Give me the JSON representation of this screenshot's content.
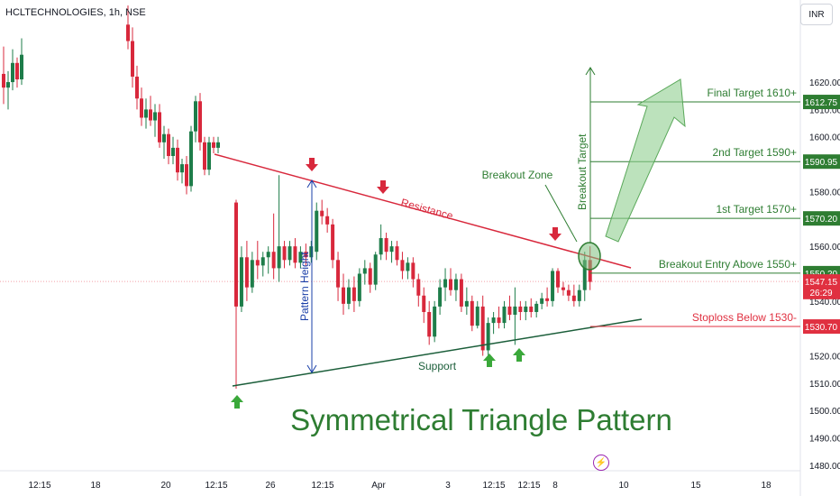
{
  "symbol": "HCLTECHNOLOGIES, 1h, NSE",
  "currency": "INR",
  "colors": {
    "bull": "#1e7d4a",
    "bear": "#d8283c",
    "annot_green": "#2e8b2e",
    "annot_red": "#d8283c",
    "annot_blue": "#1a3fa8",
    "support": "#1b5e3a",
    "label_green": "#2e7d32",
    "label_red": "#e03040",
    "label_dark": "#131722"
  },
  "chart_data": {
    "type": "candlestick",
    "title": "Symmetrical Triangle Pattern",
    "ylim": [
      1478,
      1650
    ],
    "y_ticks": [
      1480,
      1490,
      1500,
      1510,
      1520,
      1530,
      1540,
      1550,
      1560,
      1570,
      1580,
      1590,
      1600,
      1610,
      1620
    ],
    "x_ticks": [
      "12:15",
      "18",
      "20",
      "12:15",
      "26",
      "12:15",
      "Apr",
      "3",
      "12:15",
      "12:15",
      "8",
      "10",
      "15",
      "18"
    ],
    "price_labels": [
      {
        "text": "1612.75",
        "value": 1612.75,
        "style": "green"
      },
      {
        "text": "1590.95",
        "value": 1590.95,
        "style": "green"
      },
      {
        "text": "1570.20",
        "value": 1570.2,
        "style": "green"
      },
      {
        "text": "1550.20",
        "value": 1550.2,
        "style": "green"
      },
      {
        "text": "1547.15",
        "value": 1547.15,
        "style": "red"
      },
      {
        "text": "26:29",
        "value": 1543.3,
        "style": "red"
      },
      {
        "text": "1530.70",
        "value": 1530.7,
        "style": "red"
      }
    ],
    "levels": [
      {
        "label": "Final Target 1610+",
        "value": 1612.75,
        "color": "green"
      },
      {
        "label": "2nd Target 1590+",
        "value": 1590.95,
        "color": "green"
      },
      {
        "label": "1st Target 1570+",
        "value": 1570.2,
        "color": "green"
      },
      {
        "label": "Breakout Entry Above 1550+",
        "value": 1550.2,
        "color": "green"
      },
      {
        "label": "Stoploss Below 1530-",
        "value": 1530.7,
        "color": "red"
      }
    ],
    "annotations": {
      "resistance": "Resistance",
      "support": "Support",
      "breakout_zone": "Breakout Zone",
      "breakout_target": "Breakout Target",
      "pattern_height": "Pattern Height"
    },
    "candles": [
      {
        "o": 1623,
        "h": 1633,
        "l": 1612,
        "c": 1618
      },
      {
        "o": 1618,
        "h": 1624,
        "l": 1610,
        "c": 1620
      },
      {
        "o": 1620,
        "h": 1632,
        "l": 1617,
        "c": 1627
      },
      {
        "o": 1627,
        "h": 1629,
        "l": 1618,
        "c": 1621
      },
      {
        "o": 1621,
        "h": 1636,
        "l": 1619,
        "c": 1630
      },
      {
        "o": 1641,
        "h": 1648,
        "l": 1632,
        "c": 1635
      },
      {
        "o": 1635,
        "h": 1640,
        "l": 1618,
        "c": 1622
      },
      {
        "o": 1622,
        "h": 1626,
        "l": 1610,
        "c": 1614
      },
      {
        "o": 1614,
        "h": 1618,
        "l": 1604,
        "c": 1607
      },
      {
        "o": 1607,
        "h": 1614,
        "l": 1603,
        "c": 1610
      },
      {
        "o": 1610,
        "h": 1615,
        "l": 1604,
        "c": 1606
      },
      {
        "o": 1606,
        "h": 1612,
        "l": 1600,
        "c": 1609
      },
      {
        "o": 1609,
        "h": 1612,
        "l": 1596,
        "c": 1598
      },
      {
        "o": 1598,
        "h": 1604,
        "l": 1592,
        "c": 1601
      },
      {
        "o": 1601,
        "h": 1603,
        "l": 1590,
        "c": 1593
      },
      {
        "o": 1593,
        "h": 1600,
        "l": 1590,
        "c": 1596
      },
      {
        "o": 1596,
        "h": 1599,
        "l": 1584,
        "c": 1587
      },
      {
        "o": 1587,
        "h": 1592,
        "l": 1583,
        "c": 1590
      },
      {
        "o": 1590,
        "h": 1593,
        "l": 1579,
        "c": 1582
      },
      {
        "o": 1582,
        "h": 1604,
        "l": 1580,
        "c": 1602
      },
      {
        "o": 1602,
        "h": 1615,
        "l": 1598,
        "c": 1613
      },
      {
        "o": 1613,
        "h": 1616,
        "l": 1595,
        "c": 1598
      },
      {
        "o": 1598,
        "h": 1600,
        "l": 1586,
        "c": 1588
      },
      {
        "o": 1588,
        "h": 1600,
        "l": 1586,
        "c": 1598
      },
      {
        "o": 1598,
        "h": 1600,
        "l": 1594,
        "c": 1596
      },
      {
        "o": 1596,
        "h": 1600,
        "l": 1594,
        "c": 1598
      },
      {
        "o": 1576,
        "h": 1577,
        "l": 1508,
        "c": 1538
      },
      {
        "o": 1538,
        "h": 1560,
        "l": 1536,
        "c": 1556
      },
      {
        "o": 1556,
        "h": 1562,
        "l": 1540,
        "c": 1545
      },
      {
        "o": 1545,
        "h": 1558,
        "l": 1543,
        "c": 1555
      },
      {
        "o": 1555,
        "h": 1562,
        "l": 1548,
        "c": 1553
      },
      {
        "o": 1553,
        "h": 1558,
        "l": 1549,
        "c": 1556
      },
      {
        "o": 1556,
        "h": 1560,
        "l": 1550,
        "c": 1558
      },
      {
        "o": 1558,
        "h": 1572,
        "l": 1548,
        "c": 1552
      },
      {
        "o": 1552,
        "h": 1586,
        "l": 1547,
        "c": 1560
      },
      {
        "o": 1560,
        "h": 1562,
        "l": 1552,
        "c": 1555
      },
      {
        "o": 1555,
        "h": 1562,
        "l": 1553,
        "c": 1560
      },
      {
        "o": 1560,
        "h": 1563,
        "l": 1552,
        "c": 1554
      },
      {
        "o": 1554,
        "h": 1560,
        "l": 1552,
        "c": 1558
      },
      {
        "o": 1558,
        "h": 1561,
        "l": 1553,
        "c": 1556
      },
      {
        "o": 1556,
        "h": 1562,
        "l": 1554,
        "c": 1560
      },
      {
        "o": 1558,
        "h": 1576,
        "l": 1555,
        "c": 1573
      },
      {
        "o": 1573,
        "h": 1577,
        "l": 1568,
        "c": 1571
      },
      {
        "o": 1571,
        "h": 1574,
        "l": 1565,
        "c": 1568
      },
      {
        "o": 1568,
        "h": 1570,
        "l": 1552,
        "c": 1555
      },
      {
        "o": 1555,
        "h": 1558,
        "l": 1540,
        "c": 1545
      },
      {
        "o": 1545,
        "h": 1550,
        "l": 1535,
        "c": 1539
      },
      {
        "o": 1539,
        "h": 1548,
        "l": 1537,
        "c": 1545
      },
      {
        "o": 1545,
        "h": 1549,
        "l": 1536,
        "c": 1540
      },
      {
        "o": 1540,
        "h": 1552,
        "l": 1538,
        "c": 1550
      },
      {
        "o": 1550,
        "h": 1555,
        "l": 1546,
        "c": 1552
      },
      {
        "o": 1552,
        "h": 1554,
        "l": 1543,
        "c": 1546
      },
      {
        "o": 1546,
        "h": 1558,
        "l": 1544,
        "c": 1557
      },
      {
        "o": 1557,
        "h": 1568,
        "l": 1555,
        "c": 1563
      },
      {
        "o": 1563,
        "h": 1565,
        "l": 1555,
        "c": 1558
      },
      {
        "o": 1558,
        "h": 1562,
        "l": 1554,
        "c": 1560
      },
      {
        "o": 1560,
        "h": 1562,
        "l": 1553,
        "c": 1555
      },
      {
        "o": 1555,
        "h": 1558,
        "l": 1548,
        "c": 1551
      },
      {
        "o": 1551,
        "h": 1556,
        "l": 1548,
        "c": 1554
      },
      {
        "o": 1554,
        "h": 1556,
        "l": 1545,
        "c": 1548
      },
      {
        "o": 1548,
        "h": 1550,
        "l": 1538,
        "c": 1542
      },
      {
        "o": 1542,
        "h": 1545,
        "l": 1532,
        "c": 1536
      },
      {
        "o": 1536,
        "h": 1540,
        "l": 1524,
        "c": 1527
      },
      {
        "o": 1527,
        "h": 1540,
        "l": 1525,
        "c": 1538
      },
      {
        "o": 1538,
        "h": 1548,
        "l": 1535,
        "c": 1545
      },
      {
        "o": 1545,
        "h": 1552,
        "l": 1540,
        "c": 1548
      },
      {
        "o": 1548,
        "h": 1552,
        "l": 1542,
        "c": 1544
      },
      {
        "o": 1544,
        "h": 1550,
        "l": 1540,
        "c": 1548
      },
      {
        "o": 1548,
        "h": 1550,
        "l": 1536,
        "c": 1538
      },
      {
        "o": 1538,
        "h": 1545,
        "l": 1535,
        "c": 1540
      },
      {
        "o": 1540,
        "h": 1542,
        "l": 1529,
        "c": 1531
      },
      {
        "o": 1531,
        "h": 1540,
        "l": 1530,
        "c": 1538
      },
      {
        "o": 1538,
        "h": 1542,
        "l": 1520,
        "c": 1522
      },
      {
        "o": 1522,
        "h": 1534,
        "l": 1520,
        "c": 1532
      },
      {
        "o": 1532,
        "h": 1536,
        "l": 1528,
        "c": 1534
      },
      {
        "o": 1534,
        "h": 1538,
        "l": 1530,
        "c": 1532
      },
      {
        "o": 1532,
        "h": 1540,
        "l": 1530,
        "c": 1538
      },
      {
        "o": 1538,
        "h": 1542,
        "l": 1533,
        "c": 1535
      },
      {
        "o": 1535,
        "h": 1545,
        "l": 1524,
        "c": 1538
      },
      {
        "o": 1538,
        "h": 1540,
        "l": 1533,
        "c": 1536
      },
      {
        "o": 1536,
        "h": 1540,
        "l": 1533,
        "c": 1538
      },
      {
        "o": 1538,
        "h": 1541,
        "l": 1534,
        "c": 1536
      },
      {
        "o": 1536,
        "h": 1540,
        "l": 1534,
        "c": 1539
      },
      {
        "o": 1539,
        "h": 1543,
        "l": 1537,
        "c": 1541
      },
      {
        "o": 1541,
        "h": 1545,
        "l": 1538,
        "c": 1540
      },
      {
        "o": 1540,
        "h": 1552,
        "l": 1538,
        "c": 1551
      },
      {
        "o": 1551,
        "h": 1552,
        "l": 1543,
        "c": 1545
      },
      {
        "o": 1545,
        "h": 1547,
        "l": 1542,
        "c": 1544
      },
      {
        "o": 1544,
        "h": 1546,
        "l": 1540,
        "c": 1542
      },
      {
        "o": 1542,
        "h": 1546,
        "l": 1538,
        "c": 1540
      },
      {
        "o": 1540,
        "h": 1546,
        "l": 1538,
        "c": 1544
      },
      {
        "o": 1544,
        "h": 1558,
        "l": 1540,
        "c": 1555
      },
      {
        "o": 1555,
        "h": 1560,
        "l": 1544,
        "c": 1547
      }
    ]
  }
}
